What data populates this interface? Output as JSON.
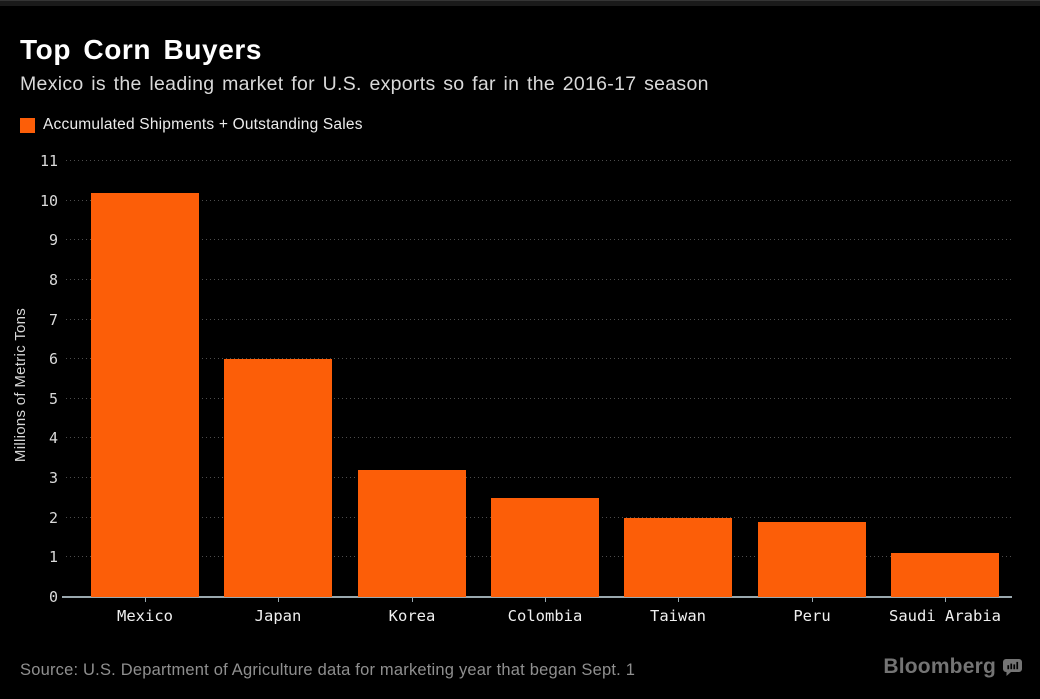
{
  "header": {
    "title": "Top Corn Buyers",
    "subtitle": "Mexico is the leading market for U.S. exports so far in the 2016-17 season"
  },
  "legend": {
    "label": "Accumulated Shipments + Outstanding Sales",
    "swatch_color": "#fc5e08"
  },
  "chart_data": {
    "type": "bar",
    "title": "Top Corn Buyers",
    "subtitle": "Mexico is the leading market for U.S. exports so far in the 2016-17 season",
    "series_name": "Accumulated Shipments + Outstanding Sales",
    "categories": [
      "Mexico",
      "Japan",
      "Korea",
      "Colombia",
      "Taiwan",
      "Peru",
      "Saudi Arabia"
    ],
    "values": [
      10.2,
      6.0,
      3.2,
      2.5,
      2.0,
      1.9,
      1.1
    ],
    "xlabel": "",
    "ylabel": "Millions of Metric Tons",
    "ylim": [
      0,
      11
    ],
    "yticks": [
      0,
      1,
      2,
      3,
      4,
      5,
      6,
      7,
      8,
      9,
      10,
      11
    ],
    "grid": "horizontal-dotted",
    "legend_position": "top-left",
    "bar_color": "#fc5e08"
  },
  "footer": {
    "source": "Source: U.S. Department of Agriculture data for marketing year that began Sept. 1",
    "brand": "Bloomberg"
  },
  "colors": {
    "background": "#000000",
    "bar": "#fc5e08",
    "title": "#ffffff",
    "subtitle": "#d9d9d9",
    "axis_line": "#9aa8ae",
    "gridline": "#4d4d4d",
    "source": "#8f8f8f",
    "brand": "#747474"
  }
}
